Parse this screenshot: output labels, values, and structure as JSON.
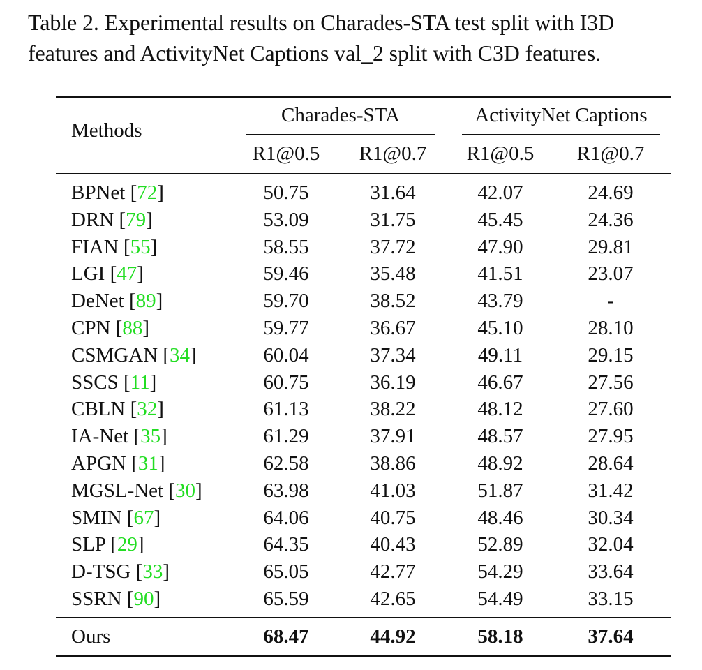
{
  "caption": {
    "line1": "Table 2. Experimental results on Charades-STA test split with I3D",
    "line2": "features and ActivityNet Captions val_2 split with C3D features."
  },
  "table": {
    "methods_header": "Methods",
    "groups": [
      "Charades-STA",
      "ActivityNet Captions"
    ],
    "metrics": [
      "R1@0.5",
      "R1@0.7",
      "R1@0.5",
      "R1@0.7"
    ],
    "rows": [
      {
        "method": "BPNet",
        "ref": "72",
        "values": [
          "50.75",
          "31.64",
          "42.07",
          "24.69"
        ]
      },
      {
        "method": "DRN",
        "ref": "79",
        "values": [
          "53.09",
          "31.75",
          "45.45",
          "24.36"
        ]
      },
      {
        "method": "FIAN",
        "ref": "55",
        "values": [
          "58.55",
          "37.72",
          "47.90",
          "29.81"
        ]
      },
      {
        "method": "LGI",
        "ref": "47",
        "values": [
          "59.46",
          "35.48",
          "41.51",
          "23.07"
        ]
      },
      {
        "method": "DeNet",
        "ref": "89",
        "values": [
          "59.70",
          "38.52",
          "43.79",
          "-"
        ]
      },
      {
        "method": "CPN",
        "ref": "88",
        "values": [
          "59.77",
          "36.67",
          "45.10",
          "28.10"
        ]
      },
      {
        "method": "CSMGAN",
        "ref": "34",
        "values": [
          "60.04",
          "37.34",
          "49.11",
          "29.15"
        ]
      },
      {
        "method": "SSCS",
        "ref": "11",
        "values": [
          "60.75",
          "36.19",
          "46.67",
          "27.56"
        ]
      },
      {
        "method": "CBLN",
        "ref": "32",
        "values": [
          "61.13",
          "38.22",
          "48.12",
          "27.60"
        ]
      },
      {
        "method": "IA-Net",
        "ref": "35",
        "values": [
          "61.29",
          "37.91",
          "48.57",
          "27.95"
        ]
      },
      {
        "method": "APGN",
        "ref": "31",
        "values": [
          "62.58",
          "38.86",
          "48.92",
          "28.64"
        ]
      },
      {
        "method": "MGSL-Net",
        "ref": "30",
        "values": [
          "63.98",
          "41.03",
          "51.87",
          "31.42"
        ]
      },
      {
        "method": "SMIN",
        "ref": "67",
        "values": [
          "64.06",
          "40.75",
          "48.46",
          "30.34"
        ]
      },
      {
        "method": "SLP",
        "ref": "29",
        "values": [
          "64.35",
          "40.43",
          "52.89",
          "32.04"
        ]
      },
      {
        "method": "D-TSG",
        "ref": "33",
        "values": [
          "65.05",
          "42.77",
          "54.29",
          "33.64"
        ]
      },
      {
        "method": "SSRN",
        "ref": "90",
        "values": [
          "65.59",
          "42.65",
          "54.49",
          "33.15"
        ]
      }
    ],
    "ours": {
      "method": "Ours",
      "values": [
        "68.47",
        "44.92",
        "58.18",
        "37.64"
      ]
    }
  },
  "colors": {
    "reference_link": "#22dd22",
    "text": "#111111"
  }
}
